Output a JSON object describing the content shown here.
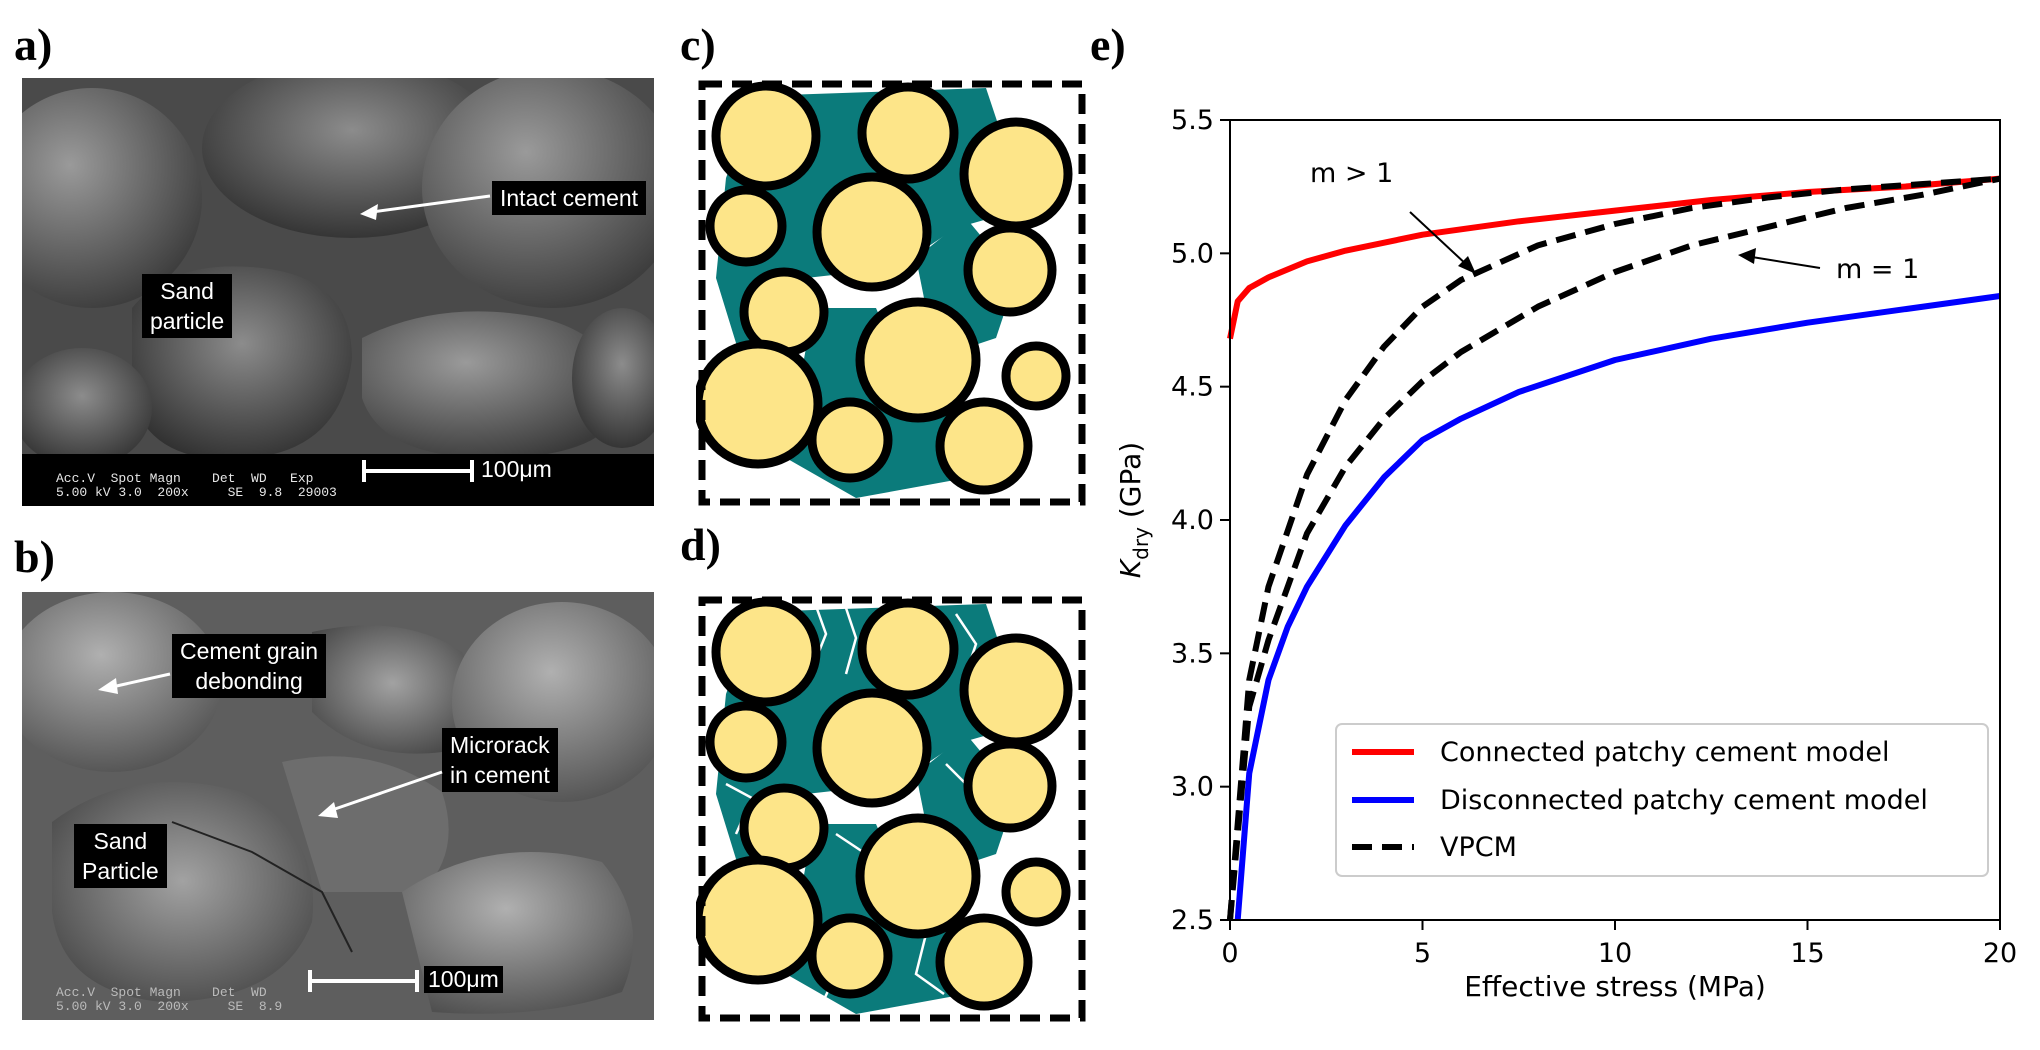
{
  "panels": {
    "a": {
      "label": "a)",
      "callouts": [
        "Intact cement",
        "Sand\nparticle"
      ],
      "meta_header": "Acc.V  Spot Magn    Det  WD   Exp",
      "meta_values": "5.00 kV 3.0  200x     SE  9.8  29003",
      "scale_text": "100μm"
    },
    "b": {
      "label": "b)",
      "callouts": [
        "Cement grain\ndebonding",
        "Microrack\nin cement",
        "Sand\nParticle"
      ],
      "meta_header": "Acc.V  Spot Magn    Det  WD",
      "meta_values": "5.00 kV 3.0  200x     SE  8.9",
      "scale_text": "100μm"
    },
    "c": {
      "label": "c)"
    },
    "d": {
      "label": "d)"
    },
    "e": {
      "label": "e)"
    }
  },
  "colors": {
    "grain": "#fde589",
    "cement": "#0b7b7b",
    "connected": "#ff0000",
    "disconnected": "#0000ff",
    "vpcm": "#000000"
  },
  "chart_data": {
    "type": "line",
    "xlabel": "Effective stress (MPa)",
    "ylabel_main": "K",
    "ylabel_sub": "dry",
    "ylabel_unit": " (GPa)",
    "xlim": [
      0,
      20
    ],
    "ylim": [
      2.5,
      5.5
    ],
    "xticks": [
      0,
      5,
      10,
      15,
      20
    ],
    "yticks": [
      2.5,
      3.0,
      3.5,
      4.0,
      4.5,
      5.0,
      5.5
    ],
    "legend_position": "lower-right",
    "series": [
      {
        "name": "Connected patchy cement model",
        "style": "solid",
        "x": [
          0,
          0.2,
          0.5,
          1,
          2,
          3,
          5,
          7.5,
          10,
          12.5,
          15,
          17.5,
          20
        ],
        "y": [
          4.68,
          4.82,
          4.87,
          4.91,
          4.97,
          5.01,
          5.07,
          5.12,
          5.16,
          5.2,
          5.23,
          5.25,
          5.28
        ]
      },
      {
        "name": "Disconnected patchy cement model",
        "style": "solid",
        "x": [
          0.2,
          0.5,
          1,
          1.5,
          2,
          3,
          4,
          5,
          6,
          7.5,
          10,
          12.5,
          15,
          17.5,
          20
        ],
        "y": [
          2.5,
          3.05,
          3.4,
          3.6,
          3.75,
          3.98,
          4.16,
          4.3,
          4.38,
          4.48,
          4.6,
          4.68,
          4.74,
          4.79,
          4.84
        ]
      },
      {
        "name": "VPCM",
        "style": "dashed",
        "x": [
          0,
          0.5,
          1,
          2,
          3,
          4,
          5,
          6,
          8,
          10,
          12,
          14,
          16,
          18,
          20
        ],
        "y": [
          2.5,
          3.4,
          3.75,
          4.17,
          4.45,
          4.65,
          4.8,
          4.9,
          5.03,
          5.11,
          5.17,
          5.21,
          5.24,
          5.26,
          5.28
        ]
      },
      {
        "name": "",
        "style": "dashed",
        "x": [
          0,
          0.5,
          1,
          2,
          3,
          4,
          5,
          6,
          8,
          10,
          12,
          14,
          16,
          18,
          20
        ],
        "y": [
          2.5,
          3.3,
          3.55,
          3.95,
          4.2,
          4.38,
          4.52,
          4.63,
          4.8,
          4.93,
          5.03,
          5.1,
          5.17,
          5.22,
          5.28
        ]
      }
    ],
    "annotations": [
      "m > 1",
      "m = 1"
    ]
  }
}
